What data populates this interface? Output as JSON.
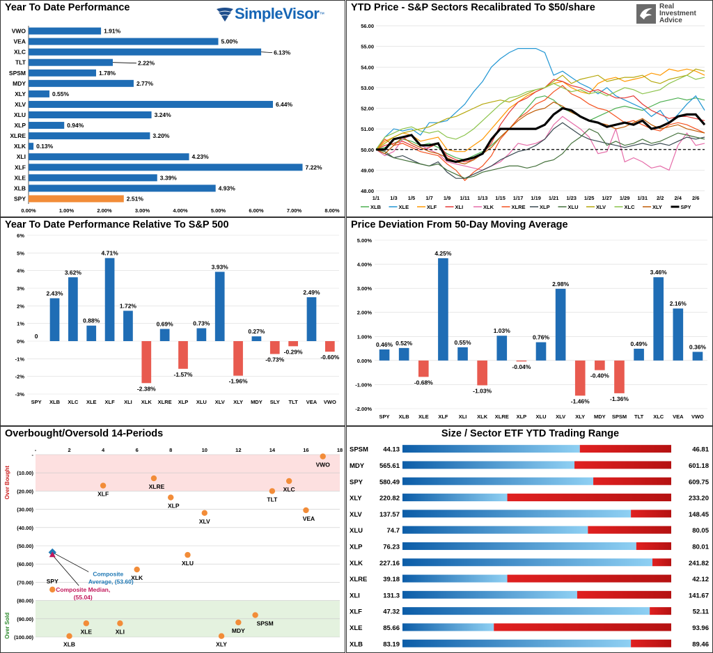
{
  "branding": {
    "simplevisor": "SimpleVisor",
    "simplevisor_tm": "™",
    "ria_line1": "Real",
    "ria_line2": "Investment",
    "ria_line3": "Advice"
  },
  "panels": {
    "ytd": "Year To Date Performance",
    "price": "YTD Price - S&P Sectors Recalibrated To $50/share",
    "relative": "Year To Date Performance Relative To S&P 500",
    "deviation": "Price Deviation From 50-Day Moving Average",
    "obos": "Overbought/Oversold 14-Periods",
    "range": "Size / Sector ETF YTD Trading Range"
  },
  "chart_data": [
    {
      "id": "ytd",
      "type": "bar",
      "orientation": "horizontal",
      "categories": [
        "VWO",
        "VEA",
        "XLC",
        "TLT",
        "SPSM",
        "MDY",
        "XLY",
        "XLV",
        "XLU",
        "XLP",
        "XLRE",
        "XLK",
        "XLI",
        "XLF",
        "XLE",
        "XLB",
        "SPY"
      ],
      "values": [
        1.91,
        5.0,
        6.13,
        2.22,
        1.78,
        2.77,
        0.55,
        6.44,
        3.24,
        0.94,
        3.2,
        0.13,
        4.23,
        7.22,
        3.39,
        4.93,
        2.51
      ],
      "labels": [
        "1.91%",
        "5.00%",
        "6.13%",
        "2.22%",
        "1.78%",
        "2.77%",
        "0.55%",
        "6.44%",
        "3.24%",
        "0.94%",
        "3.20%",
        "0.13%",
        "4.23%",
        "7.22%",
        "3.39%",
        "4.93%",
        "2.51%"
      ],
      "highlight": "SPY",
      "xlim": [
        0,
        8
      ],
      "ticks": [
        "0.00%",
        "1.00%",
        "2.00%",
        "3.00%",
        "4.00%",
        "5.00%",
        "6.00%",
        "7.00%",
        "8.00%"
      ],
      "colors": {
        "bar": "#1f6db5",
        "highlight": "#f28c38"
      }
    },
    {
      "id": "price",
      "type": "line",
      "x": [
        "1/1",
        "1/2",
        "1/3",
        "1/4",
        "1/5",
        "1/6",
        "1/7",
        "1/8",
        "1/9",
        "1/10",
        "1/11",
        "1/12",
        "1/13",
        "1/14",
        "1/15",
        "1/16",
        "1/17",
        "1/18",
        "1/19",
        "1/20",
        "1/21",
        "1/22",
        "1/23",
        "1/24",
        "1/25",
        "1/26",
        "1/27",
        "1/28",
        "1/29",
        "1/30",
        "1/31",
        "2/1",
        "2/2",
        "2/3",
        "2/4",
        "2/5",
        "2/6",
        "2/7"
      ],
      "xticks": [
        "1/1",
        "1/3",
        "1/5",
        "1/7",
        "1/9",
        "1/11",
        "1/13",
        "1/15",
        "1/17",
        "1/19",
        "1/21",
        "1/23",
        "1/25",
        "1/27",
        "1/29",
        "1/31",
        "2/2",
        "2/4",
        "2/6"
      ],
      "ylim": [
        48,
        56
      ],
      "yticks": [
        "48.00",
        "49.00",
        "50.00",
        "51.00",
        "52.00",
        "53.00",
        "54.00",
        "55.00",
        "56.00"
      ],
      "baseline": 50,
      "series": [
        {
          "name": "XLB",
          "color": "#4caf50",
          "values": [
            50,
            50.1,
            50.3,
            50.5,
            50.4,
            50.2,
            50.3,
            50.1,
            49.8,
            49.6,
            49.5,
            49.7,
            49.9,
            50.2,
            50.6,
            51.0,
            51.5,
            52.0,
            52.5,
            52.6,
            52.4,
            52.0,
            51.8,
            51.6,
            51.4,
            51.6,
            51.8,
            52.0,
            52.1,
            52.0,
            51.9,
            52.1,
            52.3,
            52.4,
            52.5,
            52.4,
            52.5,
            52.4
          ]
        },
        {
          "name": "XLE",
          "color": "#2196d3",
          "values": [
            50,
            50.6,
            51.0,
            50.9,
            51.0,
            50.7,
            51.3,
            51.3,
            51.4,
            51.8,
            52.2,
            52.8,
            53.3,
            54.0,
            54.4,
            54.7,
            54.9,
            54.9,
            54.9,
            54.7,
            53.6,
            53.8,
            53.5,
            53.2,
            53.0,
            52.7,
            53.0,
            52.6,
            52.4,
            52.2,
            52.0,
            51.6,
            51.9,
            51.3,
            51.7,
            52.2,
            52.6,
            51.9
          ]
        },
        {
          "name": "XLF",
          "color": "#ff9800",
          "values": [
            50,
            50.4,
            50.6,
            50.8,
            50.7,
            50.4,
            50.5,
            50.6,
            50.0,
            49.9,
            49.9,
            50.2,
            50.5,
            51.0,
            51.5,
            52.0,
            52.3,
            52.6,
            52.8,
            53.0,
            53.2,
            53.3,
            53.0,
            52.8,
            52.7,
            53.2,
            53.4,
            53.5,
            53.3,
            53.4,
            53.5,
            53.7,
            53.6,
            53.9,
            53.8,
            53.9,
            53.8,
            53.6
          ]
        },
        {
          "name": "XLI",
          "color": "#e53935",
          "values": [
            50,
            50.2,
            50.3,
            50.4,
            50.2,
            50.0,
            50.1,
            50.3,
            49.7,
            49.5,
            49.4,
            49.5,
            49.8,
            50.3,
            51.2,
            51.8,
            52.3,
            52.5,
            52.8,
            53.0,
            53.4,
            53.3,
            53.1,
            53.0,
            52.8,
            52.9,
            52.7,
            52.5,
            52.5,
            52.6,
            52.2,
            51.9,
            51.7,
            51.5,
            51.6,
            51.6,
            51.5,
            51.4
          ]
        },
        {
          "name": "XLK",
          "color": "#e56ba8",
          "values": [
            50,
            49.7,
            49.9,
            50.5,
            50.7,
            50.2,
            50.0,
            49.8,
            49.4,
            49.3,
            49.2,
            49.1,
            49.0,
            49.2,
            49.4,
            49.8,
            50.3,
            50.2,
            50.3,
            50.5,
            51.2,
            51.6,
            51.3,
            51.0,
            50.6,
            49.8,
            49.9,
            51.0,
            49.4,
            49.6,
            49.4,
            49.1,
            49.2,
            49.0,
            50.2,
            50.8,
            50.2,
            50.3
          ]
        },
        {
          "name": "XLRE",
          "color": "#f4511e",
          "values": [
            50,
            50.5,
            50.2,
            50.3,
            50.1,
            49.9,
            49.8,
            49.7,
            49.3,
            49.0,
            48.5,
            48.9,
            49.2,
            49.7,
            50.5,
            51.0,
            51.5,
            51.8,
            52.2,
            52.4,
            52.8,
            53.1,
            52.7,
            52.5,
            52.2,
            52.0,
            51.9,
            51.6,
            51.3,
            51.4,
            51.2,
            51.0,
            50.9,
            51.2,
            51.3,
            51.2,
            51.0,
            50.8
          ]
        },
        {
          "name": "XLP",
          "color": "#37474f",
          "values": [
            50,
            49.8,
            49.6,
            49.7,
            49.5,
            49.3,
            49.2,
            49.4,
            48.9,
            48.6,
            48.6,
            48.8,
            49.0,
            49.2,
            49.5,
            49.7,
            49.9,
            50.0,
            50.2,
            50.5,
            51.0,
            51.3,
            51.0,
            50.7,
            50.5,
            50.4,
            50.3,
            50.2,
            50.1,
            50.2,
            50.3,
            50.2,
            50.3,
            50.2,
            50.4,
            50.6,
            50.5,
            50.6
          ]
        },
        {
          "name": "XLU",
          "color": "#43703a",
          "values": [
            50,
            49.9,
            49.6,
            49.5,
            49.4,
            49.3,
            49.2,
            49.3,
            49.0,
            48.8,
            48.6,
            48.7,
            48.9,
            49.0,
            49.1,
            49.2,
            49.2,
            49.1,
            49.2,
            49.4,
            49.5,
            49.8,
            50.3,
            50.6,
            51.0,
            50.8,
            50.2,
            50.4,
            50.2,
            50.3,
            50.5,
            50.3,
            50.4,
            50.6,
            50.8,
            50.7,
            50.6,
            50.5
          ]
        },
        {
          "name": "XLV",
          "color": "#b5a70a",
          "values": [
            50,
            50.3,
            50.6,
            50.8,
            50.9,
            51.0,
            51.1,
            51.3,
            51.5,
            51.6,
            51.8,
            52.0,
            52.2,
            52.3,
            52.4,
            52.3,
            52.5,
            52.7,
            52.9,
            53.0,
            53.3,
            53.6,
            53.2,
            53.4,
            53.5,
            53.6,
            53.3,
            53.4,
            53.5,
            53.5,
            53.6,
            53.3,
            53.2,
            53.4,
            53.5,
            53.6,
            53.9,
            53.8
          ]
        },
        {
          "name": "XLC",
          "color": "#8bc34a",
          "values": [
            50,
            50.6,
            50.8,
            51.0,
            51.1,
            50.9,
            50.8,
            50.9,
            50.6,
            50.5,
            50.7,
            51.0,
            51.4,
            51.8,
            52.2,
            52.5,
            52.6,
            52.8,
            52.9,
            53.0,
            53.2,
            53.0,
            52.8,
            52.9,
            52.7,
            52.8,
            52.6,
            52.8,
            53.0,
            52.9,
            52.7,
            52.8,
            52.9,
            53.2,
            53.4,
            53.6,
            53.4,
            53.5
          ]
        },
        {
          "name": "XLY",
          "color": "#bf5b04",
          "values": [
            50,
            49.8,
            50.2,
            50.6,
            50.3,
            50.1,
            49.9,
            49.8,
            49.6,
            49.4,
            49.3,
            49.5,
            49.8,
            50.1,
            50.6,
            51.0,
            51.4,
            51.7,
            51.9,
            52.0,
            52.3,
            52.1,
            51.8,
            51.6,
            51.4,
            51.3,
            51.2,
            51.0,
            51.1,
            51.3,
            51.5,
            51.2,
            51.0,
            51.1,
            51.2,
            51.0,
            50.9,
            50.8
          ]
        },
        {
          "name": "SPY",
          "color": "#000000",
          "bold": true,
          "values": [
            50,
            50.0,
            50.5,
            50.6,
            50.7,
            50.2,
            50.2,
            50.3,
            49.5,
            49.4,
            49.5,
            49.6,
            49.8,
            50.5,
            51.0,
            51.0,
            51.0,
            51.0,
            51.0,
            51.2,
            51.7,
            52.0,
            51.9,
            51.6,
            51.4,
            51.3,
            51.1,
            51.2,
            51.3,
            51.2,
            51.4,
            51.0,
            51.1,
            51.3,
            51.6,
            51.7,
            51.7,
            51.2
          ]
        }
      ]
    },
    {
      "id": "relative",
      "type": "bar",
      "categories": [
        "SPY",
        "XLB",
        "XLC",
        "XLE",
        "XLF",
        "XLI",
        "XLK",
        "XLRE",
        "XLP",
        "XLU",
        "XLV",
        "XLY",
        "MDY",
        "SLY",
        "TLT",
        "VEA",
        "VWO"
      ],
      "values": [
        0,
        2.43,
        3.62,
        0.88,
        4.71,
        1.72,
        -2.38,
        0.69,
        -1.57,
        0.73,
        3.93,
        -1.96,
        0.27,
        -0.73,
        -0.29,
        2.49,
        -0.6
      ],
      "labels": [
        "0",
        "2.43%",
        "3.62%",
        "0.88%",
        "4.71%",
        "1.72%",
        "-2.38%",
        "0.69%",
        "-1.57%",
        "0.73%",
        "3.93%",
        "-1.96%",
        "0.27%",
        "-0.73%",
        "-0.29%",
        "2.49%",
        "-0.60%"
      ],
      "ylim": [
        -3,
        6
      ],
      "yticks": [
        "-3%",
        "-2%",
        "-1%",
        "0%",
        "1%",
        "2%",
        "3%",
        "4%",
        "5%",
        "6%"
      ],
      "colors": {
        "positive": "#1f6db5",
        "negative": "#e85a4f"
      }
    },
    {
      "id": "deviation",
      "type": "bar",
      "categories": [
        "SPY",
        "XLB",
        "XLE",
        "XLF",
        "XLI",
        "XLK",
        "XLRE",
        "XLP",
        "XLU",
        "XLV",
        "XLY",
        "MDY",
        "SPSM",
        "TLT",
        "XLC",
        "VEA",
        "VWO"
      ],
      "values": [
        0.46,
        0.52,
        -0.68,
        4.25,
        0.55,
        -1.03,
        1.03,
        -0.04,
        0.76,
        2.98,
        -1.46,
        -0.4,
        -1.36,
        0.49,
        3.46,
        2.16,
        0.36
      ],
      "labels": [
        "0.46%",
        "0.52%",
        "-0.68%",
        "4.25%",
        "0.55%",
        "-1.03%",
        "1.03%",
        "-0.04%",
        "0.76%",
        "2.98%",
        "-1.46%",
        "-0.40%",
        "-1.36%",
        "0.49%",
        "3.46%",
        "2.16%",
        "0.36%"
      ],
      "ylim": [
        -2,
        5
      ],
      "yticks": [
        "-2.00%",
        "-1.00%",
        "0.00%",
        "1.00%",
        "2.00%",
        "3.00%",
        "4.00%",
        "5.00%"
      ],
      "colors": {
        "positive": "#1f6db5",
        "negative": "#e85a4f"
      }
    },
    {
      "id": "obos",
      "type": "scatter",
      "xlim": [
        0,
        18
      ],
      "xticks": [
        "-",
        "2",
        "4",
        "6",
        "8",
        "10",
        "12",
        "14",
        "16",
        "18"
      ],
      "ylim": [
        -100,
        0
      ],
      "yticks": [
        "-",
        "(10.00)",
        "(20.00)",
        "(30.00)",
        "(40.00)",
        "(50.00)",
        "(60.00)",
        "(70.00)",
        "(80.00)",
        "(90.00)",
        "(100.00)"
      ],
      "zones": {
        "overbought_label": "Over Bought",
        "oversold_label": "Over Sold",
        "overbought_color": "#fde0e0",
        "oversold_color": "#e4f2df"
      },
      "points": [
        {
          "name": "VWO",
          "x": 17,
          "y": -1
        },
        {
          "name": "XLF",
          "x": 4,
          "y": -17
        },
        {
          "name": "XLRE",
          "x": 7,
          "y": -13
        },
        {
          "name": "XLC",
          "x": 15,
          "y": -14.5
        },
        {
          "name": "TLT",
          "x": 14,
          "y": -20
        },
        {
          "name": "XLP",
          "x": 8,
          "y": -23.5
        },
        {
          "name": "VEA",
          "x": 16,
          "y": -30.5
        },
        {
          "name": "XLV",
          "x": 10,
          "y": -32
        },
        {
          "name": "XLU",
          "x": 9,
          "y": -55
        },
        {
          "name": "XLK",
          "x": 6,
          "y": -63
        },
        {
          "name": "SPY",
          "x": 1,
          "y": -74
        },
        {
          "name": "SPSM",
          "x": 13,
          "y": -88
        },
        {
          "name": "MDY",
          "x": 12,
          "y": -92
        },
        {
          "name": "XLE",
          "x": 3,
          "y": -92.5
        },
        {
          "name": "XLI",
          "x": 5,
          "y": -92.5
        },
        {
          "name": "XLB",
          "x": 2,
          "y": -99.5
        },
        {
          "name": "XLY",
          "x": 11,
          "y": -99.5
        }
      ],
      "composite_average": {
        "x": 1,
        "y": -53.6,
        "label1": "Composite",
        "label2": "Average, (53.60)",
        "color": "#1f78b4"
      },
      "composite_median": {
        "x": 1,
        "y": -55.04,
        "label1": "Composite Median,",
        "label2": "(55.04)",
        "color": "#c2185b"
      },
      "colors": {
        "point": "#f28c38"
      }
    },
    {
      "id": "range",
      "type": "bar",
      "subtype": "range",
      "rows": [
        {
          "name": "SPSM",
          "low": "44.13",
          "high": "46.81",
          "position": 0.66
        },
        {
          "name": "MDY",
          "low": "565.61",
          "high": "601.18",
          "position": 0.64
        },
        {
          "name": "SPY",
          "low": "580.49",
          "high": "609.75",
          "position": 0.71
        },
        {
          "name": "XLY",
          "low": "220.82",
          "high": "233.20",
          "position": 0.39
        },
        {
          "name": "XLV",
          "low": "137.57",
          "high": "148.45",
          "position": 0.85
        },
        {
          "name": "XLU",
          "low": "74.7",
          "high": "80.05",
          "position": 0.69
        },
        {
          "name": "XLP",
          "low": "76.23",
          "high": "80.01",
          "position": 0.87
        },
        {
          "name": "XLK",
          "low": "227.16",
          "high": "241.82",
          "position": 0.93
        },
        {
          "name": "XLRE",
          "low": "39.18",
          "high": "42.12",
          "position": 0.39
        },
        {
          "name": "XLI",
          "low": "131.3",
          "high": "141.67",
          "position": 0.65
        },
        {
          "name": "XLF",
          "low": "47.32",
          "high": "52.11",
          "position": 0.92
        },
        {
          "name": "XLE",
          "low": "85.66",
          "high": "93.96",
          "position": 0.34
        },
        {
          "name": "XLB",
          "low": "83.19",
          "high": "89.46",
          "position": 0.85
        }
      ],
      "colors": {
        "blue_dark": "#0c5da8",
        "blue_light": "#8fd0f3",
        "red": "#e02020",
        "red_dark": "#b51212"
      }
    }
  ]
}
